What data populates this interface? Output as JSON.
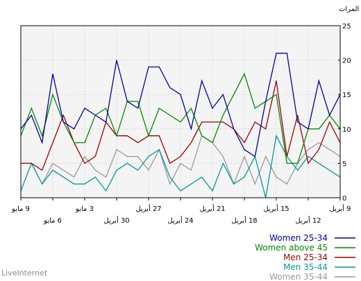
{
  "chart_data": {
    "type": "line",
    "ylabel": "المرات",
    "ylim": [
      0,
      25
    ],
    "yticks": [
      0,
      5,
      10,
      15,
      20,
      25
    ],
    "grid": true,
    "legend": "bottom-right",
    "x_order": "right-to-left",
    "x_tick_labels_upper": [
      "9 أبريل",
      "15 أبريل",
      "21 أبريل",
      "27 أبريل",
      "3 مايو",
      "9 مايو"
    ],
    "x_tick_labels_lower": [
      "12 أبريل",
      "18 أبريل",
      "24 أبريل",
      "30 أبريل",
      "6 مايو"
    ],
    "series": [
      {
        "name": "Women 25-34",
        "color": "#000099",
        "values": [
          15,
          12,
          17,
          10,
          11,
          21,
          21,
          14,
          6,
          7,
          10,
          15,
          13,
          17,
          10,
          15,
          16,
          19,
          19,
          13,
          14,
          20,
          11,
          12,
          13,
          10,
          11,
          18,
          8,
          12,
          10
        ]
      },
      {
        "name": "Women above 45",
        "color": "#008800",
        "values": [
          10,
          12,
          10,
          10,
          5,
          5,
          15,
          14,
          13,
          18,
          15,
          12,
          8,
          9,
          13,
          11,
          12,
          13,
          9,
          14,
          14,
          9,
          13,
          12,
          8,
          8,
          11,
          15,
          9,
          13,
          9
        ]
      },
      {
        "name": "Men 25-34",
        "color": "#990000",
        "values": [
          8,
          11,
          7,
          5,
          12,
          6,
          17,
          10,
          11,
          8,
          10,
          11,
          11,
          11,
          8,
          6,
          5,
          9,
          9,
          8,
          9,
          9,
          11,
          6,
          5,
          8,
          12,
          8,
          4,
          5,
          5
        ]
      },
      {
        "name": "Men 35-44",
        "color": "#009999",
        "values": [
          3,
          4,
          5,
          6,
          4,
          6,
          9,
          0,
          6,
          3,
          2,
          5,
          1,
          3,
          2,
          1,
          3,
          7,
          6,
          4,
          5,
          4,
          1,
          3,
          2,
          2,
          3,
          4,
          2,
          5,
          1
        ]
      },
      {
        "name": "Women 35-44",
        "color": "#999999",
        "values": [
          6,
          7,
          8,
          7,
          5,
          2,
          3,
          6,
          2,
          6,
          2,
          6,
          8,
          9,
          4,
          5,
          2,
          7,
          4,
          6,
          6,
          7,
          3,
          4,
          6,
          3,
          4,
          5,
          2,
          5,
          5
        ]
      }
    ]
  },
  "brand": "LiveInternet"
}
